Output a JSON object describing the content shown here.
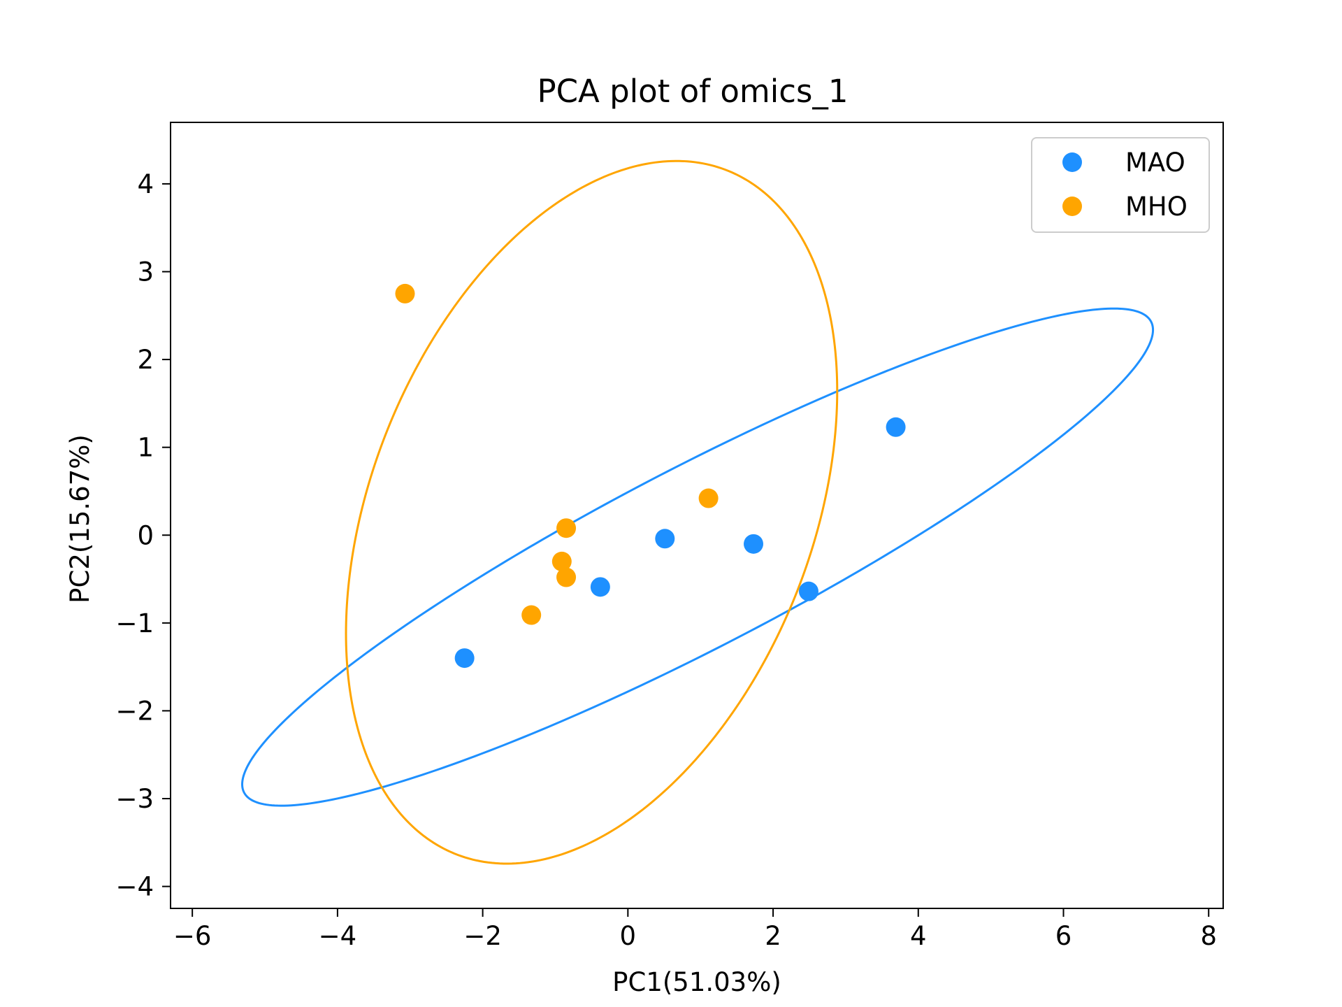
{
  "chart_data": {
    "type": "scatter",
    "title": "PCA plot of omics_1",
    "xlabel": "PC1(51.03%)",
    "ylabel": "PC2(15.67%)",
    "xlim": [
      -6.3,
      8.2
    ],
    "ylim": [
      -4.25,
      4.7
    ],
    "xticks": [
      -6,
      -4,
      -2,
      0,
      2,
      4,
      6,
      8
    ],
    "xtick_labels": [
      "−6",
      "−4",
      "−2",
      "0",
      "2",
      "4",
      "6",
      "8"
    ],
    "yticks": [
      -4,
      -3,
      -2,
      -1,
      0,
      1,
      2,
      3,
      4
    ],
    "ytick_labels": [
      "−4",
      "−3",
      "−2",
      "−1",
      "0",
      "1",
      "2",
      "3",
      "4"
    ],
    "grid": false,
    "legend_position": "top-right",
    "series": [
      {
        "name": "MAO",
        "color": "#1e90ff",
        "points": [
          {
            "x": -2.25,
            "y": -1.4
          },
          {
            "x": -0.38,
            "y": -0.59
          },
          {
            "x": 0.51,
            "y": -0.04
          },
          {
            "x": 1.73,
            "y": -0.1
          },
          {
            "x": 2.49,
            "y": -0.64
          },
          {
            "x": 3.69,
            "y": 1.23
          }
        ],
        "ellipse": {
          "cx": 0.96,
          "cy": -0.25,
          "semi_major": 6.8,
          "semi_minor": 1.06,
          "angle_deg": 23.0
        }
      },
      {
        "name": "MHO",
        "color": "#ffa500",
        "points": [
          {
            "x": -3.07,
            "y": 2.75
          },
          {
            "x": -0.85,
            "y": 0.08
          },
          {
            "x": -0.91,
            "y": -0.3
          },
          {
            "x": -0.85,
            "y": -0.48
          },
          {
            "x": -1.33,
            "y": -0.91
          },
          {
            "x": 1.11,
            "y": 0.42
          }
        ],
        "ellipse": {
          "cx": -0.5,
          "cy": 0.26,
          "semi_major": 4.35,
          "semi_minor": 2.92,
          "angle_deg": 58.0
        }
      }
    ]
  }
}
